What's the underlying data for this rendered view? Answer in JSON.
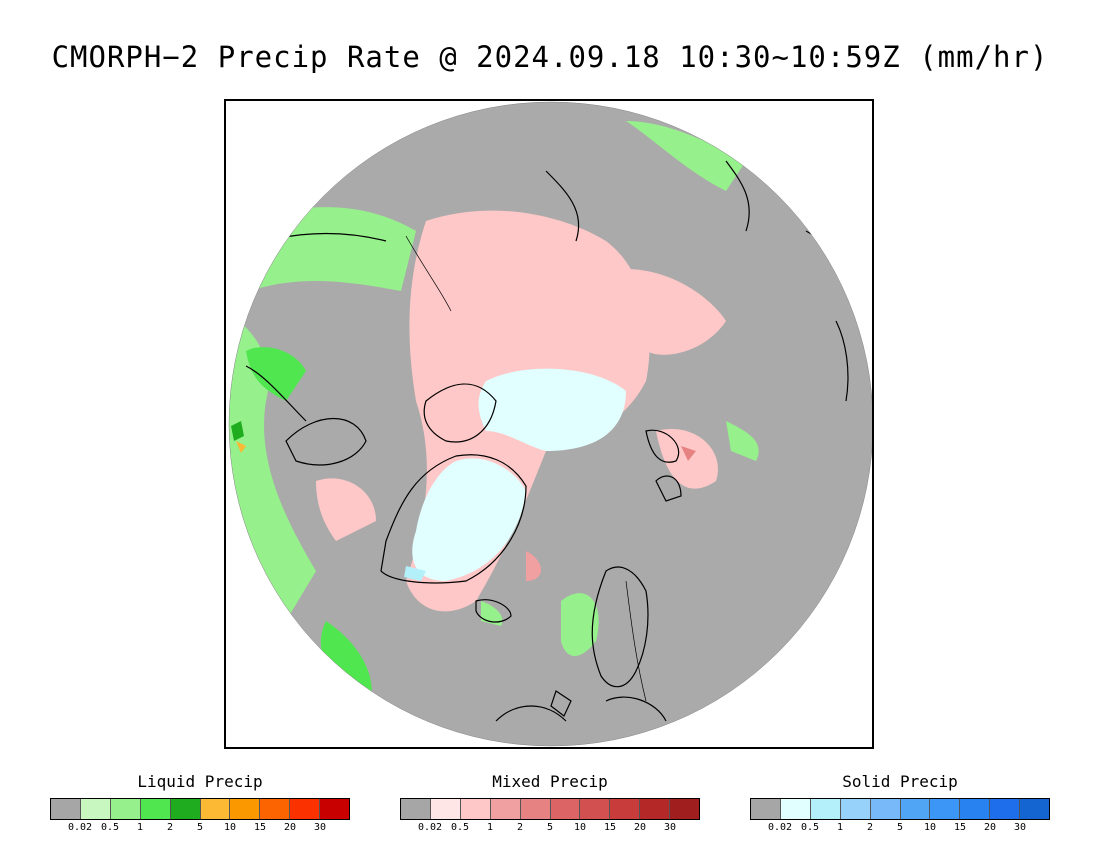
{
  "title": "CMORPH−2 Precip Rate @ 2024.09.18 10:30~10:59Z (mm/hr)",
  "map": {
    "projection": "north polar stereographic",
    "background_color": "#aaaaaa"
  },
  "legends": [
    {
      "title": "Liquid Precip",
      "colors": [
        "#a6a6a6",
        "#c8f8c0",
        "#96f08c",
        "#50e650",
        "#1fad1f",
        "#fbb934",
        "#fb9800",
        "#fb6400",
        "#fb3200",
        "#c80000"
      ],
      "ticks": [
        "0.02",
        "0.5",
        "1",
        "2",
        "5",
        "10",
        "15",
        "20",
        "30"
      ]
    },
    {
      "title": "Mixed Precip",
      "colors": [
        "#a6a6a6",
        "#ffe6e6",
        "#ffc8c8",
        "#f0a0a0",
        "#e68282",
        "#dc6464",
        "#d25050",
        "#c83c3c",
        "#b42828",
        "#a01e1e"
      ],
      "ticks": [
        "0.02",
        "0.5",
        "1",
        "2",
        "5",
        "10",
        "15",
        "20",
        "30"
      ]
    },
    {
      "title": "Solid Precip",
      "colors": [
        "#a6a6a6",
        "#e1ffff",
        "#b4f0fa",
        "#96d2fa",
        "#78b9fa",
        "#50a5f5",
        "#3c96f5",
        "#2882f0",
        "#1e6eeb",
        "#1464d2"
      ],
      "ticks": [
        "0.02",
        "0.5",
        "1",
        "2",
        "5",
        "10",
        "15",
        "20",
        "30"
      ]
    }
  ]
}
